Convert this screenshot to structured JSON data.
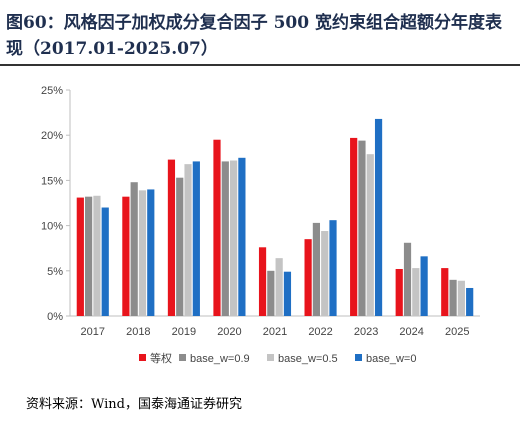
{
  "page": {
    "top_cut_text": "",
    "bottom_cut_text": ""
  },
  "figure": {
    "title": "图60：风格因子加权成分复合因子 500 宽约束组合超额分年度表现（2017.01-2025.07）",
    "source": "资料来源：Wind，国泰海通证券研究"
  },
  "colors": {
    "series": [
      "#e8141c",
      "#8c8c8c",
      "#c4c4c4",
      "#1f6fc4"
    ],
    "axis": "#bfbfbf",
    "title": "#1f2f4f"
  },
  "chart_data": {
    "type": "bar",
    "categories": [
      "2017",
      "2018",
      "2019",
      "2020",
      "2021",
      "2022",
      "2023",
      "2024",
      "2025"
    ],
    "series": [
      {
        "name": "等权",
        "values": [
          13.1,
          13.2,
          17.3,
          19.5,
          7.6,
          8.5,
          19.7,
          5.2,
          5.3
        ]
      },
      {
        "name": "base_w=0.9",
        "values": [
          13.2,
          14.8,
          15.3,
          17.1,
          5.0,
          10.3,
          19.4,
          8.1,
          4.0
        ]
      },
      {
        "name": "base_w=0.5",
        "values": [
          13.3,
          13.9,
          16.8,
          17.2,
          6.4,
          9.4,
          17.9,
          5.3,
          3.9
        ]
      },
      {
        "name": "base_w=0",
        "values": [
          12.0,
          14.0,
          17.1,
          17.5,
          4.9,
          10.6,
          21.8,
          6.6,
          3.1
        ]
      }
    ],
    "ylim": [
      0,
      25
    ],
    "yticks": [
      0,
      5,
      10,
      15,
      20,
      25
    ],
    "ytick_labels": [
      "0%",
      "5%",
      "10%",
      "15%",
      "20%",
      "25%"
    ],
    "legend_position": "bottom",
    "grid": false
  }
}
